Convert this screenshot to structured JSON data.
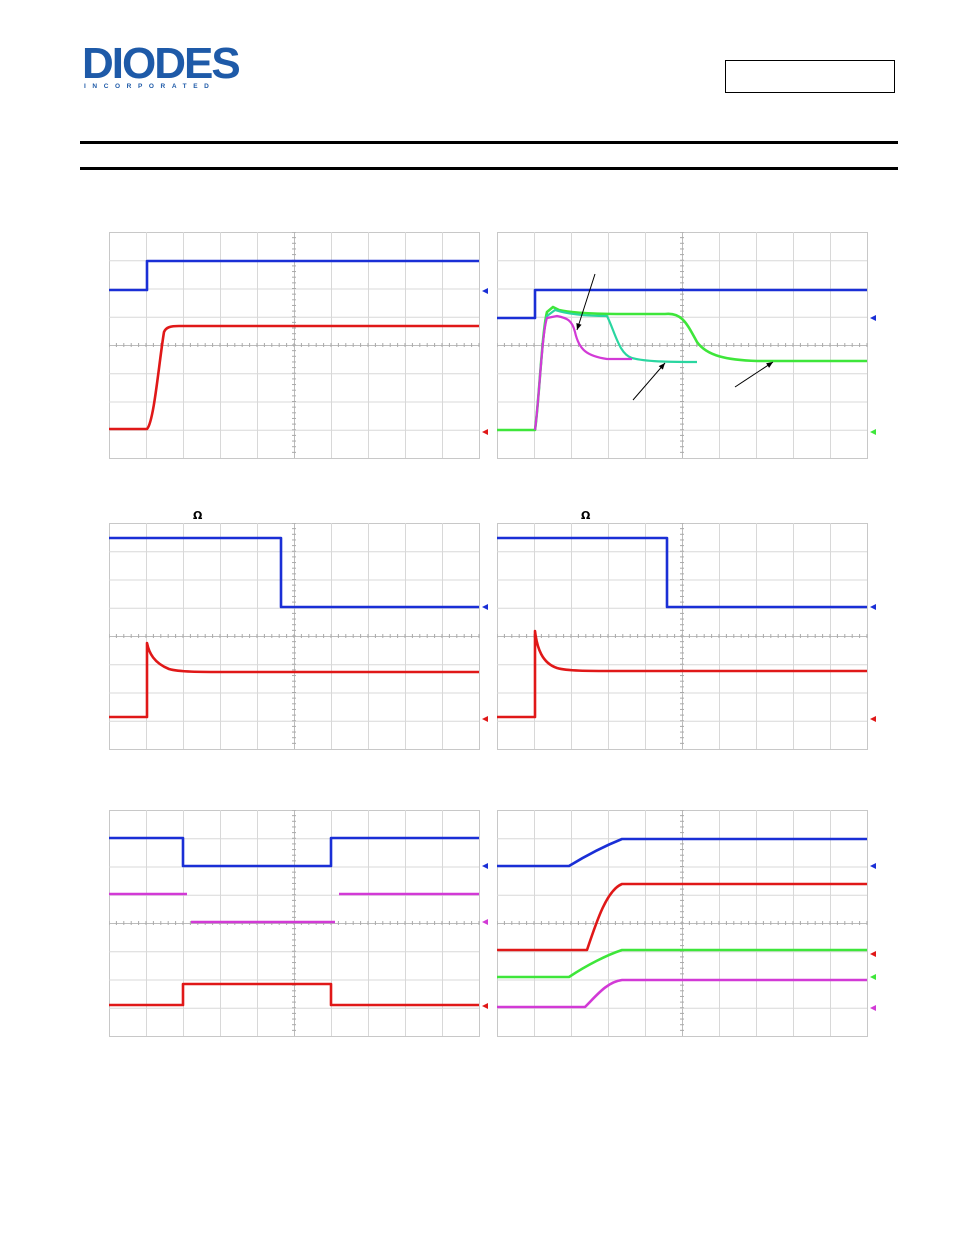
{
  "header": {
    "logo_word": "DIODES",
    "logo_sub": "INCORPORATED",
    "brand_color": "#1e5aa8"
  },
  "annotations": {
    "omega": "Ω"
  },
  "colors": {
    "ch_blue": "#1a2fd6",
    "ch_red": "#e01818",
    "ch_green": "#3ee63a",
    "ch_cyan": "#2ad6a0",
    "ch_magenta": "#d23ad6",
    "grid": "#d8d8d8"
  }
}
